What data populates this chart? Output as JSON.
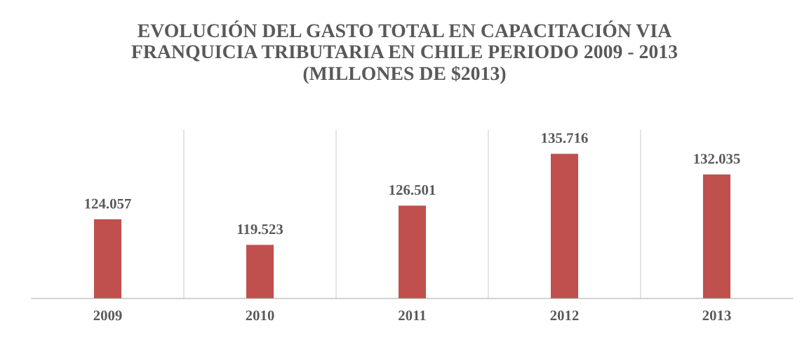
{
  "chart_data": {
    "type": "bar",
    "title": "EVOLUCIÓN DEL GASTO TOTAL EN CAPACITACIÓN VIA\nFRANQUICIA TRIBUTARIA EN CHILE PERIODO 2009 - 2013\n(MILLONES DE $2013)",
    "categories": [
      "2009",
      "2010",
      "2011",
      "2012",
      "2013"
    ],
    "values": [
      124057,
      119523,
      126501,
      135716,
      132035
    ],
    "value_labels": [
      "124.057",
      "119.523",
      "126.501",
      "135.716",
      "132.035"
    ],
    "color": "#c0504d",
    "ylim": [
      110000,
      140000
    ],
    "tick_labels": "x",
    "grid": false,
    "legend": false
  }
}
